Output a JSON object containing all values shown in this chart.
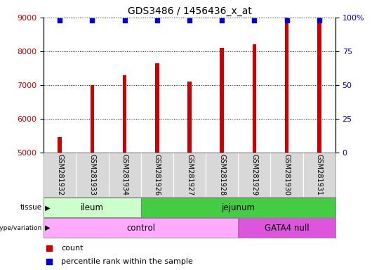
{
  "title": "GDS3486 / 1456436_x_at",
  "samples": [
    "GSM281932",
    "GSM281933",
    "GSM281934",
    "GSM281926",
    "GSM281927",
    "GSM281928",
    "GSM281929",
    "GSM281930",
    "GSM281931"
  ],
  "counts": [
    5450,
    7000,
    7300,
    7650,
    7100,
    8100,
    8200,
    9000,
    9000
  ],
  "percentile_ranks": [
    98,
    98,
    98,
    98,
    98,
    98,
    98,
    98,
    98
  ],
  "bar_color": "#cc0000",
  "dot_color": "#0000cc",
  "ylim_left": [
    5000,
    9000
  ],
  "ylim_right": [
    0,
    100
  ],
  "yticks_left": [
    5000,
    6000,
    7000,
    8000,
    9000
  ],
  "yticks_right": [
    0,
    25,
    50,
    75,
    100
  ],
  "tick_label_color_left": "#cc0000",
  "tick_label_color_right": "#0000cc",
  "tissue_labels": [
    {
      "label": "ileum",
      "start": 0,
      "end": 3,
      "color": "#ccffcc"
    },
    {
      "label": "jejunum",
      "start": 3,
      "end": 9,
      "color": "#44cc44"
    }
  ],
  "genotype_labels": [
    {
      "label": "control",
      "start": 0,
      "end": 6,
      "color": "#ffaaff"
    },
    {
      "label": "GATA4 null",
      "start": 6,
      "end": 9,
      "color": "#dd55dd"
    }
  ],
  "legend_count_color": "#cc0000",
  "legend_pct_color": "#0000cc",
  "background_color": "#ffffff",
  "xtick_bg": "#d8d8d8",
  "row_label_tissue": "tissue",
  "row_label_geno": "genotype/variation",
  "legend_count_text": "count",
  "legend_pct_text": "percentile rank within the sample"
}
